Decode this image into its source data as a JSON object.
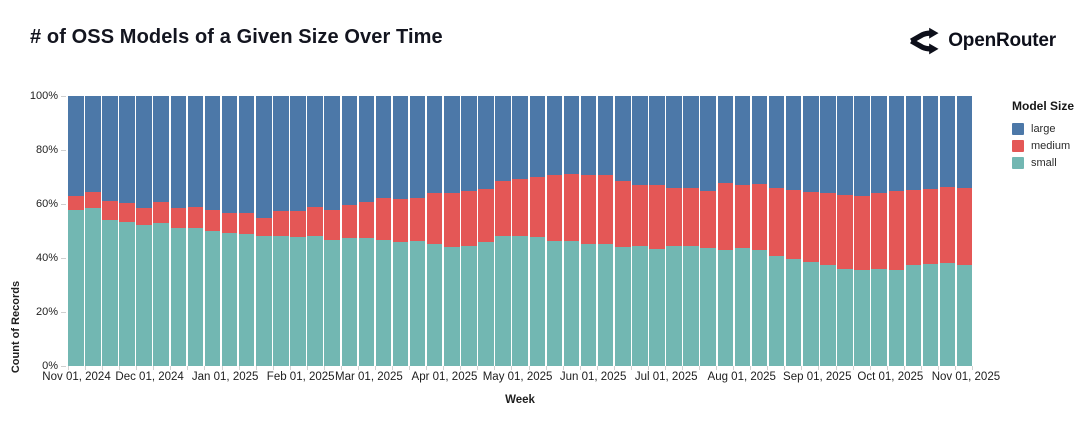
{
  "header": {
    "title": "# of OSS Models of a Given Size Over Time",
    "brand": "OpenRouter"
  },
  "chart_data": {
    "type": "bar",
    "stacked": true,
    "normalized": "percent",
    "title": "# of OSS Models of a Given Size Over Time",
    "xlabel": "Week",
    "ylabel": "Count of Records",
    "legend_title": "Model Size",
    "legend_position": "right",
    "grid": false,
    "ylim": [
      0,
      100
    ],
    "y_ticks": [
      {
        "label": "0%",
        "value": 0
      },
      {
        "label": "20%",
        "value": 20
      },
      {
        "label": "40%",
        "value": 40
      },
      {
        "label": "60%",
        "value": 60
      },
      {
        "label": "80%",
        "value": 80
      },
      {
        "label": "100%",
        "value": 100
      }
    ],
    "x_ticks": [
      {
        "label": "Nov 01, 2024",
        "day": 0
      },
      {
        "label": "Dec 01, 2024",
        "day": 30
      },
      {
        "label": "Jan 01, 2025",
        "day": 61
      },
      {
        "label": "Feb 01, 2025",
        "day": 92
      },
      {
        "label": "Mar 01, 2025",
        "day": 120
      },
      {
        "label": "Apr 01, 2025",
        "day": 151
      },
      {
        "label": "May 01, 2025",
        "day": 181
      },
      {
        "label": "Jun 01, 2025",
        "day": 212
      },
      {
        "label": "Jul 01, 2025",
        "day": 242
      },
      {
        "label": "Aug 01, 2025",
        "day": 273
      },
      {
        "label": "Sep 01, 2025",
        "day": 304
      },
      {
        "label": "Oct 01, 2025",
        "day": 334
      },
      {
        "label": "Nov 01, 2025",
        "day": 365
      }
    ],
    "weeks": 53,
    "total_days": 371,
    "x_tick_center_day_offset": 3.5,
    "colors": {
      "large": "#4C78A8",
      "medium": "#E45756",
      "small": "#72B7B2"
    },
    "legend_items": [
      {
        "label": "large",
        "color": "#4C78A8"
      },
      {
        "label": "medium",
        "color": "#E45756"
      },
      {
        "label": "small",
        "color": "#72B7B2"
      }
    ],
    "series": [
      {
        "name": "small",
        "color": "#72B7B2",
        "values": [
          57.7,
          58.6,
          54.2,
          53.4,
          52.4,
          53.0,
          51.1,
          51.1,
          49.9,
          49.3,
          49.0,
          48.0,
          48.0,
          47.8,
          48.0,
          46.8,
          47.4,
          47.4,
          46.8,
          45.8,
          46.2,
          45.3,
          44.1,
          44.6,
          45.8,
          48.0,
          48.0,
          47.8,
          46.2,
          46.2,
          45.3,
          45.3,
          44.1,
          44.3,
          43.3,
          44.6,
          44.3,
          43.7,
          43.1,
          43.7,
          42.8,
          40.6,
          39.6,
          38.7,
          37.5,
          35.9,
          35.6,
          35.9,
          35.6,
          37.5,
          37.7,
          38.1,
          37.5
        ]
      },
      {
        "name": "medium",
        "color": "#E45756",
        "values": [
          5.1,
          5.8,
          6.8,
          7.0,
          6.2,
          7.7,
          7.5,
          7.8,
          7.8,
          7.4,
          7.7,
          6.8,
          9.3,
          9.5,
          10.8,
          11.1,
          12.4,
          13.3,
          15.5,
          16.1,
          16.1,
          18.8,
          20.0,
          20.2,
          19.8,
          20.5,
          21.3,
          22.3,
          24.7,
          25.1,
          25.3,
          25.6,
          24.4,
          22.9,
          23.6,
          21.4,
          21.7,
          21.1,
          24.8,
          23.5,
          24.8,
          25.4,
          25.5,
          25.7,
          26.6,
          27.6,
          27.5,
          28.0,
          29.2,
          27.6,
          27.9,
          28.3,
          28.5
        ]
      },
      {
        "name": "large",
        "color": "#4C78A8",
        "values": [
          37.2,
          35.6,
          39.0,
          39.6,
          41.4,
          39.3,
          41.4,
          41.1,
          42.3,
          43.3,
          43.3,
          45.2,
          42.7,
          42.7,
          41.2,
          42.1,
          40.2,
          39.3,
          37.7,
          38.1,
          37.7,
          35.9,
          35.9,
          35.2,
          34.4,
          31.5,
          30.7,
          29.9,
          29.1,
          28.7,
          29.4,
          29.1,
          31.5,
          32.8,
          33.1,
          34.0,
          34.0,
          35.2,
          32.1,
          32.8,
          32.4,
          34.0,
          34.9,
          35.6,
          35.9,
          36.5,
          36.9,
          36.1,
          35.2,
          34.9,
          34.4,
          33.3,
          34.0
        ]
      }
    ]
  }
}
